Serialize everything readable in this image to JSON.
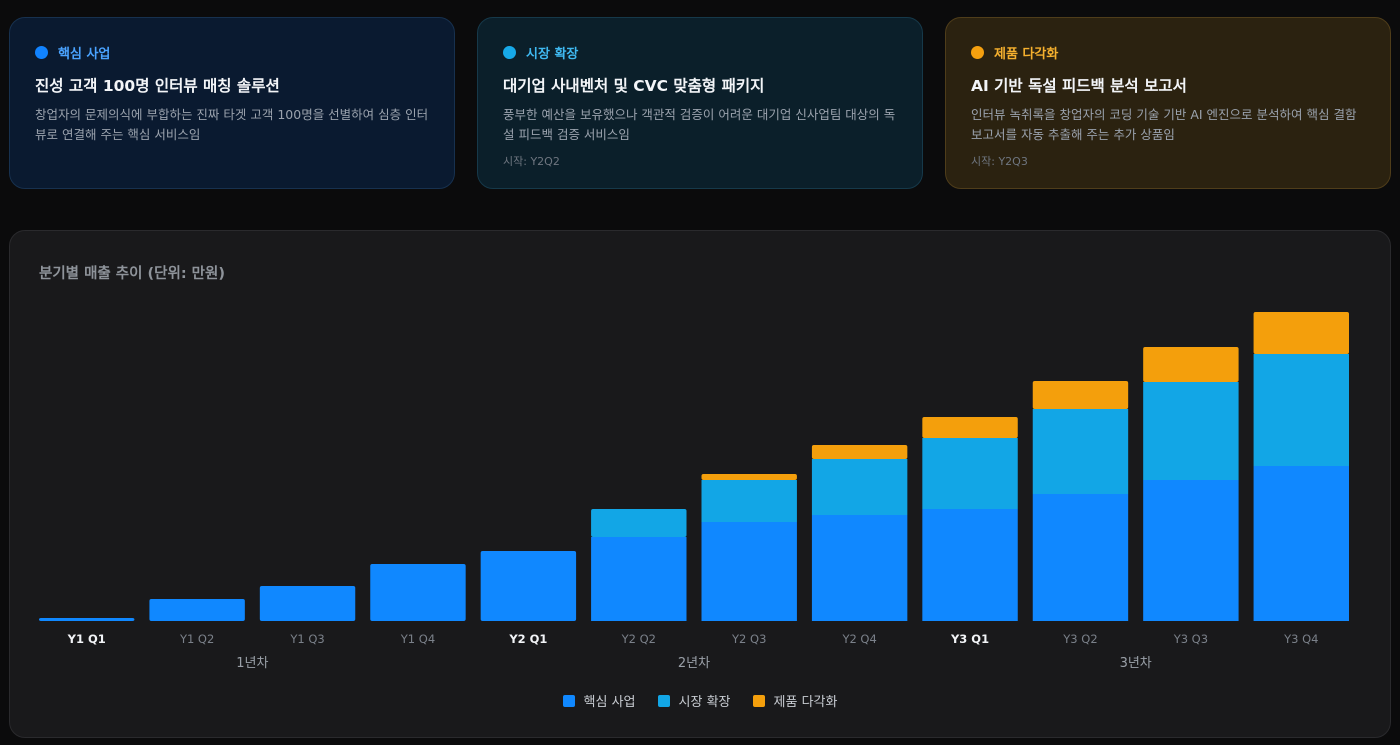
{
  "cards": [
    {
      "tag": "핵심 사업",
      "title": "진성 고객 100명 인터뷰 매칭 솔루션",
      "desc": "창업자의 문제의식에 부합하는 진짜 타겟 고객 100명을 선별하여 심층 인터뷰로 연결해 주는 핵심 서비스임",
      "since": "",
      "dot_color": "#1183ff",
      "tag_color": "#4aa3ff"
    },
    {
      "tag": "시장 확장",
      "title": "대기업 사내벤처 및 CVC 맞춤형 패키지",
      "desc": "풍부한 예산을 보유했으나 객관적 검증이 어려운 대기업 신사업팀 대상의 독설 피드백 검증 서비스임",
      "since": "시작: Y2Q2",
      "dot_color": "#17a9e8",
      "tag_color": "#3fb8f0"
    },
    {
      "tag": "제품 다각화",
      "title": "AI 기반 독설 피드백 분석 보고서",
      "desc": "인터뷰 녹취록을 창업자의 코딩 기술 기반 AI 엔진으로 분석하여 핵심 결함 보고서를 자동 추출해 주는 추가 상품임",
      "since": "시작: Y2Q3",
      "dot_color": "#f5a00f",
      "tag_color": "#f5b02e"
    }
  ],
  "chart_data": {
    "type": "bar",
    "stacked": true,
    "title": "분기별 매출 추이 (단위: 만원)",
    "categories": [
      "Y1 Q1",
      "Y1 Q2",
      "Y1 Q3",
      "Y1 Q4",
      "Y2 Q1",
      "Y2 Q2",
      "Y2 Q3",
      "Y2 Q4",
      "Y3 Q1",
      "Y3 Q2",
      "Y3 Q3",
      "Y3 Q4"
    ],
    "highlighted_categories": [
      "Y1 Q1",
      "Y2 Q1",
      "Y3 Q1"
    ],
    "groups": [
      {
        "label": "1년차",
        "categories": [
          "Y1 Q1",
          "Y1 Q2",
          "Y1 Q3",
          "Y1 Q4"
        ]
      },
      {
        "label": "2년차",
        "categories": [
          "Y2 Q1",
          "Y2 Q2",
          "Y2 Q3",
          "Y2 Q4"
        ]
      },
      {
        "label": "3년차",
        "categories": [
          "Y3 Q1",
          "Y3 Q2",
          "Y3 Q3",
          "Y3 Q4"
        ]
      }
    ],
    "series": [
      {
        "name": "핵심 사업",
        "color": "#1088ff",
        "values": [
          3,
          22,
          35,
          57,
          70,
          84,
          99,
          106,
          112,
          127,
          141,
          155
        ]
      },
      {
        "name": "시장 확장",
        "color": "#12a6e6",
        "values": [
          0,
          0,
          0,
          0,
          0,
          28,
          42,
          56,
          71,
          85,
          98,
          112
        ]
      },
      {
        "name": "제품 다각화",
        "color": "#f49f0c",
        "values": [
          0,
          0,
          0,
          0,
          0,
          0,
          6,
          14,
          21,
          28,
          35,
          42
        ]
      }
    ],
    "ylim": [
      0,
      320
    ],
    "grid": false,
    "legend_position": "bottom-center"
  }
}
